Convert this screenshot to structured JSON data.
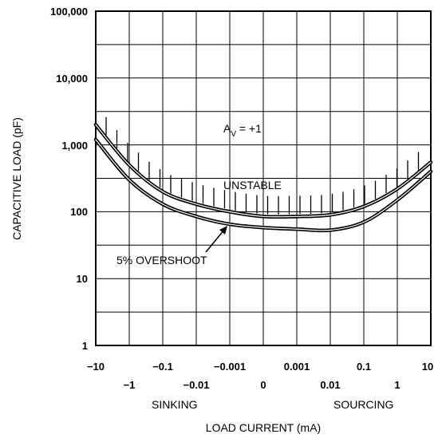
{
  "chart_data": {
    "type": "line",
    "title": "",
    "xlabel": "LOAD CURRENT (mA)",
    "ylabel": "CAPACITIVE LOAD (pF)",
    "y_scale": "log",
    "ylim": [
      1,
      100000
    ],
    "grid": true,
    "y_ticks": [
      "1",
      "10",
      "100",
      "1,000",
      "10,000",
      "100,000"
    ],
    "x_ticks_row1": [
      "−10",
      "−0.1",
      "−0.001",
      "0.001",
      "0.1",
      "10"
    ],
    "x_ticks_row2": [
      "−1",
      "−0.01",
      "0",
      "0.01",
      "1"
    ],
    "x_region_left": "SINKING",
    "x_region_right": "SOURCING",
    "annotations": {
      "gain_main": "A",
      "gain_sub": "V",
      "gain_value": " = +1",
      "unstable": "UNSTABLE",
      "overshoot": "5% OVERSHOOT"
    },
    "x_positions": [
      "−10",
      "−1",
      "−0.1",
      "−0.01",
      "−0.001",
      "0",
      "0.001",
      "0.01",
      "0.1",
      "1",
      "10"
    ],
    "series": [
      {
        "values": [
          2000,
          500,
          200,
          130,
          100,
          85,
          85,
          90,
          120,
          220,
          550
        ]
      },
      {
        "values": [
          1200,
          300,
          130,
          85,
          65,
          58,
          55,
          53,
          70,
          150,
          400
        ]
      }
    ]
  }
}
